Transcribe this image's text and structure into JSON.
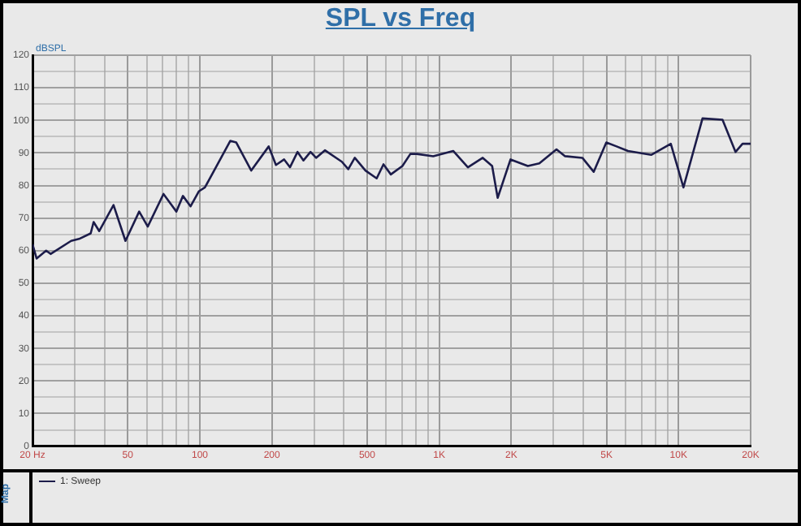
{
  "chart_data": {
    "type": "line",
    "title": "SPL vs Freq",
    "ylabel": "dBSPL",
    "legend_title": "Map",
    "log": "x",
    "grid": true,
    "legend": "bottom",
    "marker": "none",
    "line_style": "solid",
    "xlim": [
      20,
      20000
    ],
    "ylim": [
      0,
      120
    ],
    "xticks": [
      {
        "value": 20,
        "label": "20 Hz"
      },
      {
        "value": 30,
        "label": null
      },
      {
        "value": 40,
        "label": null
      },
      50,
      {
        "value": 60,
        "label": null
      },
      {
        "value": 70,
        "label": null
      },
      {
        "value": 80,
        "label": null
      },
      {
        "value": 90,
        "label": null
      },
      100,
      200,
      {
        "value": 300,
        "label": null
      },
      {
        "value": 400,
        "label": null
      },
      500,
      {
        "value": 600,
        "label": null
      },
      {
        "value": 700,
        "label": null
      },
      {
        "value": 800,
        "label": null
      },
      {
        "value": 900,
        "label": null
      },
      {
        "value": 1000,
        "label": "1K"
      },
      {
        "value": 2000,
        "label": "2K"
      },
      {
        "value": 3000,
        "label": null
      },
      {
        "value": 4000,
        "label": null
      },
      {
        "value": 5000,
        "label": "5K"
      },
      {
        "value": 6000,
        "label": null
      },
      {
        "value": 7000,
        "label": null
      },
      {
        "value": 8000,
        "label": null
      },
      {
        "value": 9000,
        "label": null
      },
      {
        "value": 10000,
        "label": "10K"
      },
      {
        "value": 20000,
        "label": "20K"
      }
    ],
    "yticks": [
      0,
      {
        "value": 5,
        "label": null
      },
      10,
      {
        "value": 15,
        "label": null
      },
      20,
      {
        "value": 25,
        "label": null
      },
      30,
      {
        "value": 35,
        "label": null
      },
      40,
      {
        "value": 45,
        "label": null
      },
      50,
      {
        "value": 55,
        "label": null
      },
      60,
      {
        "value": 65,
        "label": null
      },
      70,
      {
        "value": 75,
        "label": null
      },
      80,
      {
        "value": 85,
        "label": null
      },
      90,
      {
        "value": 95,
        "label": null
      },
      100,
      {
        "value": 105,
        "label": null
      },
      110,
      {
        "value": 115,
        "label": null
      },
      120
    ],
    "series": [
      {
        "name": "1: Sweep",
        "color": "#1c1c4a",
        "x": [
          20,
          20.8,
          22.8,
          23.8,
          29,
          31.3,
          35,
          36,
          38,
          43.6,
          48.9,
          55.8,
          60.6,
          70.5,
          79.8,
          85,
          91.5,
          99,
          105,
          134,
          142,
          164,
          194,
          208,
          225,
          238,
          256,
          271,
          290,
          306,
          333,
          392,
          417,
          444,
          492,
          548,
          585,
          628,
          702,
          758,
          806,
          944,
          1144,
          1318,
          1520,
          1664,
          1755,
          1986,
          2345,
          2620,
          3090,
          3356,
          3963,
          4420,
          4990,
          5510,
          6150,
          7680,
          9280,
          10480,
          12590,
          15260,
          17300,
          18500,
          20000
        ],
        "values": [
          62,
          57.6,
          60,
          59,
          63,
          63.6,
          65.3,
          68.8,
          66,
          74,
          63,
          72,
          67.4,
          77.4,
          72,
          76.8,
          73.6,
          78.2,
          79.4,
          93.7,
          93.2,
          84.6,
          92,
          86.3,
          88,
          85.6,
          90.3,
          87.7,
          90.3,
          88.5,
          90.8,
          87.3,
          85,
          88.5,
          84.6,
          82.2,
          86.5,
          83.4,
          86,
          89.7,
          89.7,
          89,
          90.6,
          85.6,
          88.5,
          86,
          76.2,
          88,
          86,
          86.8,
          91.1,
          89,
          88.5,
          84.2,
          93.2,
          92,
          90.6,
          89.4,
          92.8,
          79.4,
          100.6,
          100.2,
          90.3,
          92.8,
          92.8
        ]
      }
    ]
  }
}
